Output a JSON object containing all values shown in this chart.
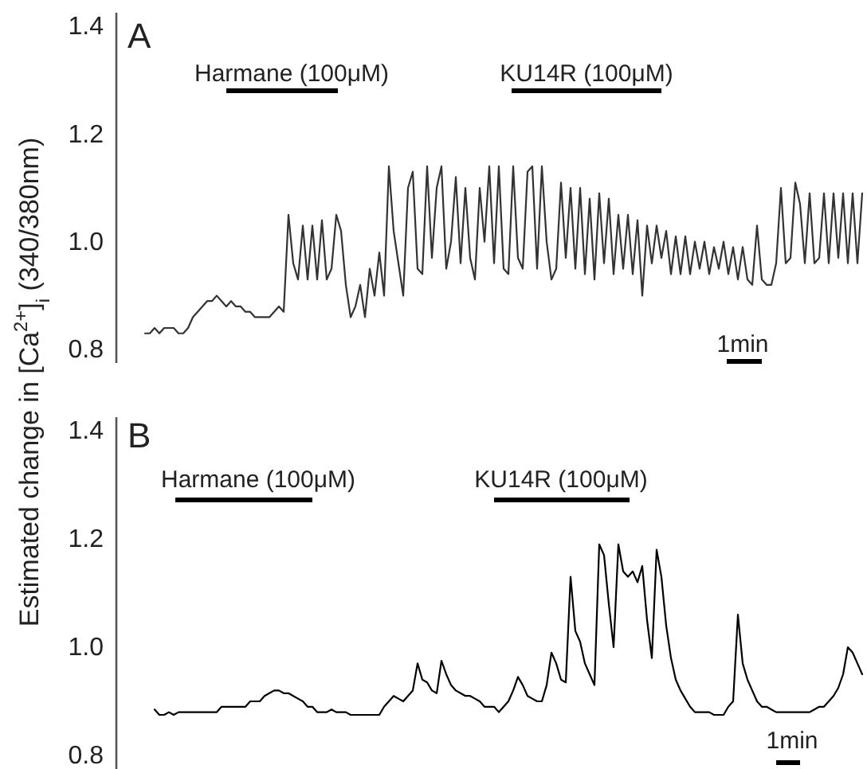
{
  "chart_data": [
    {
      "type": "line",
      "title": "A",
      "ylabel": "Estimated  change in [Ca$^{2+}$]$_{i}$ (340/380nm)",
      "categories": [
        null,
        null,
        null,
        null,
        null,
        null,
        null,
        null,
        null,
        null,
        null,
        null,
        null,
        null,
        null,
        null,
        null,
        null,
        null,
        null,
        null,
        null,
        null,
        null,
        null,
        null,
        null,
        null,
        null,
        null,
        null,
        null,
        null,
        null,
        null,
        null,
        null,
        null,
        null,
        null,
        null,
        null,
        null,
        null,
        null,
        null,
        null,
        null,
        null,
        null,
        null,
        null,
        null,
        null,
        null,
        null,
        null,
        null,
        null,
        null,
        null,
        null,
        null,
        null,
        null,
        null,
        null,
        null,
        null,
        null,
        null,
        null,
        null,
        null,
        null,
        null,
        null,
        null,
        null,
        null,
        null,
        null,
        null,
        null,
        null,
        null,
        null,
        null,
        null,
        null,
        null,
        null,
        null,
        null,
        null,
        null,
        null,
        null,
        null,
        null,
        null,
        null,
        null,
        null,
        null,
        null,
        null,
        null,
        null,
        null,
        null,
        null,
        null,
        null,
        null,
        null,
        null,
        null,
        null,
        null,
        null,
        null,
        null,
        null,
        null,
        null,
        null,
        null,
        null,
        null,
        null,
        null,
        null,
        null,
        null,
        null,
        null,
        null,
        null,
        null,
        null,
        null,
        null,
        null,
        null,
        null,
        null,
        null,
        null,
        null,
        null
      ],
      "series": [
        {
          "color": "#333333",
          "values": [
            0.83,
            0.83,
            0.84,
            0.83,
            0.84,
            0.84,
            0.84,
            0.83,
            0.83,
            0.84,
            0.86,
            0.87,
            0.88,
            0.89,
            0.89,
            0.9,
            0.89,
            0.88,
            0.89,
            0.88,
            0.88,
            0.87,
            0.87,
            0.86,
            0.86,
            0.86,
            0.86,
            0.87,
            0.88,
            0.87,
            1.05,
            0.96,
            0.93,
            1.03,
            0.93,
            1.03,
            0.93,
            1.04,
            0.93,
            0.95,
            1.05,
            1.02,
            0.92,
            0.86,
            0.88,
            0.92,
            0.86,
            0.95,
            0.9,
            0.98,
            0.9,
            1.14,
            1.02,
            0.96,
            0.9,
            1.1,
            1.13,
            0.95,
            0.94,
            1.14,
            0.97,
            1.1,
            1.14,
            0.95,
            1.0,
            1.12,
            0.96,
            1.1,
            0.97,
            0.93,
            1.1,
            1.0,
            1.14,
            0.96,
            1.14,
            0.95,
            0.94,
            1.14,
            0.97,
            0.95,
            1.13,
            1.14,
            0.95,
            1.14,
            1.0,
            0.93,
            0.95,
            1.11,
            0.97,
            1.1,
            0.95,
            1.1,
            0.94,
            1.08,
            0.93,
            1.09,
            0.96,
            1.08,
            0.94,
            1.05,
            0.95,
            1.05,
            0.94,
            1.04,
            0.9,
            1.03,
            0.96,
            1.03,
            0.97,
            1.02,
            0.94,
            1.01,
            0.94,
            1.01,
            0.94,
            1.0,
            0.95,
            1.0,
            0.94,
            0.99,
            0.95,
            1.0,
            0.94,
            0.99,
            0.93,
            0.99,
            0.93,
            0.92,
            1.03,
            0.93,
            0.92,
            0.92,
            0.96,
            1.1,
            0.96,
            0.97,
            1.11,
            1.07,
            0.96,
            1.09,
            0.96,
            0.97,
            1.09,
            0.96,
            1.09,
            0.97,
            1.09,
            0.96,
            1.09,
            0.96,
            1.09
          ]
        }
      ],
      "ylim": [
        0.775,
        1.425
      ],
      "yticks": [
        0.8,
        {
          "value": 1.0,
          "label": "1.0"
        },
        1.2,
        1.4
      ],
      "annotations": [
        "Harmane (100μM)",
        "KU14R (100μM)",
        "1min"
      ]
    },
    {
      "type": "line",
      "title": "B",
      "categories": [
        null,
        null,
        null,
        null,
        null,
        null,
        null,
        null,
        null,
        null,
        null,
        null,
        null,
        null,
        null,
        null,
        null,
        null,
        null,
        null,
        null,
        null,
        null,
        null,
        null,
        null,
        null,
        null,
        null,
        null,
        null,
        null,
        null,
        null,
        null,
        null,
        null,
        null,
        null,
        null,
        null,
        null,
        null,
        null,
        null,
        null,
        null,
        null,
        null,
        null,
        null,
        null,
        null,
        null,
        null,
        null,
        null,
        null,
        null,
        null,
        null,
        null,
        null,
        null,
        null,
        null,
        null,
        null,
        null,
        null,
        null,
        null,
        null,
        null,
        null,
        null,
        null,
        null,
        null,
        null,
        null,
        null,
        null,
        null,
        null,
        null,
        null,
        null,
        null,
        null,
        null,
        null,
        null,
        null,
        null,
        null,
        null,
        null,
        null,
        null,
        null,
        null,
        null,
        null,
        null,
        null,
        null,
        null,
        null,
        null,
        null,
        null,
        null,
        null,
        null,
        null,
        null,
        null,
        null,
        null,
        null,
        null,
        null,
        null,
        null,
        null,
        null,
        null,
        null,
        null,
        null,
        null,
        null,
        null,
        null,
        null,
        null,
        null,
        null,
        null,
        null,
        null,
        null,
        null,
        null,
        null,
        null,
        null,
        null,
        null,
        null
      ],
      "series": [
        {
          "color": "#000000",
          "values": [
            null,
            null,
            0.885,
            0.875,
            0.875,
            0.88,
            0.875,
            0.88,
            0.88,
            0.88,
            0.88,
            0.88,
            0.88,
            0.88,
            0.88,
            0.88,
            0.89,
            0.89,
            0.89,
            0.89,
            0.89,
            0.89,
            0.9,
            0.9,
            0.9,
            0.91,
            0.915,
            0.92,
            0.92,
            0.915,
            0.915,
            0.91,
            0.905,
            0.9,
            0.89,
            0.89,
            0.88,
            0.88,
            0.88,
            0.885,
            0.88,
            0.88,
            0.88,
            0.875,
            0.875,
            0.875,
            0.875,
            0.875,
            0.875,
            0.875,
            0.89,
            0.9,
            0.91,
            0.905,
            0.9,
            0.91,
            0.92,
            0.97,
            0.94,
            0.935,
            0.92,
            0.915,
            0.975,
            0.95,
            0.93,
            0.92,
            0.915,
            0.91,
            0.91,
            0.905,
            0.9,
            0.89,
            0.89,
            0.89,
            0.88,
            0.89,
            0.9,
            0.92,
            0.945,
            0.93,
            0.91,
            0.905,
            0.9,
            0.9,
            0.93,
            0.99,
            0.97,
            0.94,
            0.935,
            1.13,
            1.03,
            1.01,
            0.97,
            0.95,
            0.93,
            1.19,
            1.17,
            1.08,
            1.0,
            1.19,
            1.14,
            1.13,
            1.14,
            1.12,
            1.15,
            1.05,
            0.98,
            1.18,
            1.13,
            1.04,
            0.98,
            0.94,
            0.92,
            0.905,
            0.89,
            0.88,
            0.88,
            0.88,
            0.88,
            0.875,
            0.875,
            0.875,
            0.89,
            0.9,
            1.06,
            0.97,
            0.94,
            0.92,
            0.9,
            0.89,
            0.89,
            0.885,
            0.88,
            0.88,
            0.88,
            0.88,
            0.88,
            0.88,
            0.88,
            0.88,
            0.885,
            0.89,
            0.89,
            0.9,
            0.91,
            0.925,
            0.95,
            1.0,
            0.99,
            0.97,
            0.95
          ]
        }
      ],
      "ylim": [
        0.775,
        1.425
      ],
      "yticks": [
        0.8,
        {
          "value": 1.0,
          "label": "1.0"
        },
        1.2,
        1.4
      ],
      "annotations": [
        "Harmane (100μM)",
        "KU14R (100μM)",
        "1min"
      ]
    }
  ]
}
